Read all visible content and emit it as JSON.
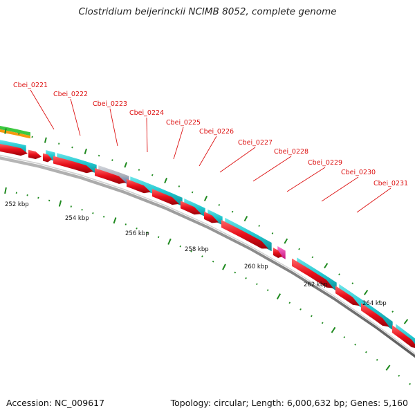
{
  "title": "Clostridium beijerinckii NCIMB 8052, complete genome",
  "footer": {
    "accession": "Accession: NC_009617",
    "summary": "Topology: circular; Length: 6,000,632 bp; Genes: 5,160"
  },
  "colors": {
    "forward_cds": "#22c8d0",
    "reverse_cds": "#e8101a",
    "pseudogene": "#a9adb8",
    "rna": "#e0208e",
    "backbone": "#888888",
    "gc_track": "#1f8a1f",
    "other_track_green": "#3cc840",
    "other_track_orange": "#f59a10",
    "label": "#dd1111"
  },
  "scale_labels": [
    "252 kbp",
    "254 kbp",
    "256 kbp",
    "258 kbp",
    "260 kbp",
    "262 kbp",
    "264 kbp"
  ],
  "gene_labels": [
    "Cbei_0221",
    "Cbei_0222",
    "Cbei_0223",
    "Cbei_0224",
    "Cbei_0225",
    "Cbei_0226",
    "Cbei_0227",
    "Cbei_0228",
    "Cbei_0229",
    "Cbei_0230",
    "Cbei_0231"
  ]
}
